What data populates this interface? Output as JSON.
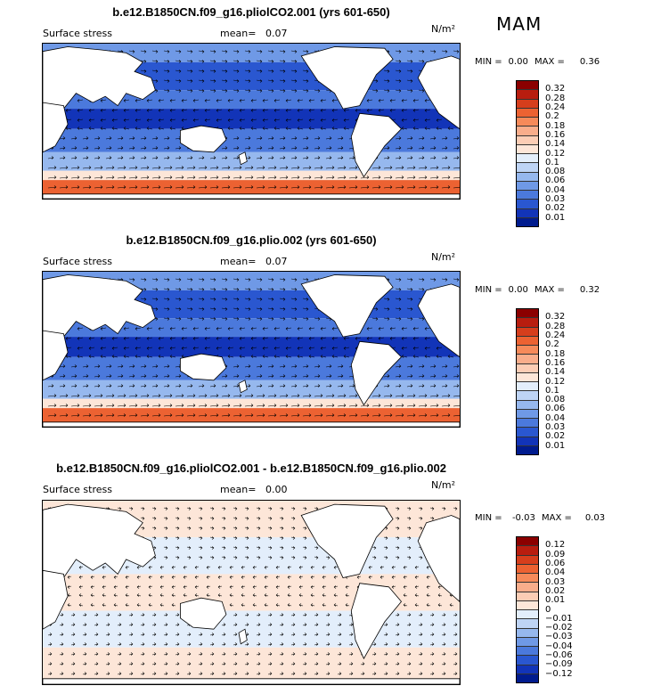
{
  "season": "MAM",
  "chart_data": [
    {
      "type": "heatmap",
      "title": "b.e12.B1850CN.f09_g16.pliolCO2.001 (yrs 601-650)",
      "variable": "Surface stress",
      "mean_label": "mean=",
      "mean": "0.07",
      "units": "N/m²",
      "min_label": "MIN =",
      "min": "0.00",
      "max_label": "MAX =",
      "max": "0.36",
      "colorbar_levels": [
        "0.32",
        "0.28",
        "0.24",
        "0.2",
        "0.18",
        "0.16",
        "0.14",
        "0.12",
        "0.1",
        "0.08",
        "0.06",
        "0.04",
        "0.03",
        "0.02",
        "0.01"
      ],
      "colorbar_colors": [
        "#8b0000",
        "#b81d0f",
        "#d63e1c",
        "#ec6232",
        "#f68a5a",
        "#f9ad8b",
        "#fccdb5",
        "#fde6d8",
        "#e3eefb",
        "#bed4f5",
        "#96b8ee",
        "#6f99e6",
        "#4b79dc",
        "#2a57d0",
        "#1234b8",
        "#001b8e"
      ]
    },
    {
      "type": "heatmap",
      "title": "b.e12.B1850CN.f09_g16.plio.002 (yrs 601-650)",
      "variable": "Surface stress",
      "mean_label": "mean=",
      "mean": "0.07",
      "units": "N/m²",
      "min_label": "MIN =",
      "min": "0.00",
      "max_label": "MAX =",
      "max": "0.32",
      "colorbar_levels": [
        "0.32",
        "0.28",
        "0.24",
        "0.2",
        "0.18",
        "0.16",
        "0.14",
        "0.12",
        "0.1",
        "0.08",
        "0.06",
        "0.04",
        "0.03",
        "0.02",
        "0.01"
      ],
      "colorbar_colors": [
        "#8b0000",
        "#b81d0f",
        "#d63e1c",
        "#ec6232",
        "#f68a5a",
        "#f9ad8b",
        "#fccdb5",
        "#fde6d8",
        "#e3eefb",
        "#bed4f5",
        "#96b8ee",
        "#6f99e6",
        "#4b79dc",
        "#2a57d0",
        "#1234b8",
        "#001b8e"
      ]
    },
    {
      "type": "heatmap",
      "title": "b.e12.B1850CN.f09_g16.pliolCO2.001 - b.e12.B1850CN.f09_g16.plio.002",
      "variable": "Surface stress",
      "mean_label": "mean=",
      "mean": "0.00",
      "units": "N/m²",
      "min_label": "MIN =",
      "min": "-0.03",
      "max_label": "MAX =",
      "max": "0.03",
      "colorbar_levels": [
        "0.12",
        "0.09",
        "0.06",
        "0.04",
        "0.03",
        "0.02",
        "0.01",
        "0",
        "−0.01",
        "−0.02",
        "−0.03",
        "−0.04",
        "−0.06",
        "−0.09",
        "−0.12"
      ],
      "colorbar_colors": [
        "#8b0000",
        "#b81d0f",
        "#d63e1c",
        "#ec6232",
        "#f68a5a",
        "#f9ad8b",
        "#fccdb5",
        "#fde6d8",
        "#e3eefb",
        "#bed4f5",
        "#96b8ee",
        "#6f99e6",
        "#4b79dc",
        "#2a57d0",
        "#1234b8",
        "#001b8e"
      ]
    }
  ]
}
